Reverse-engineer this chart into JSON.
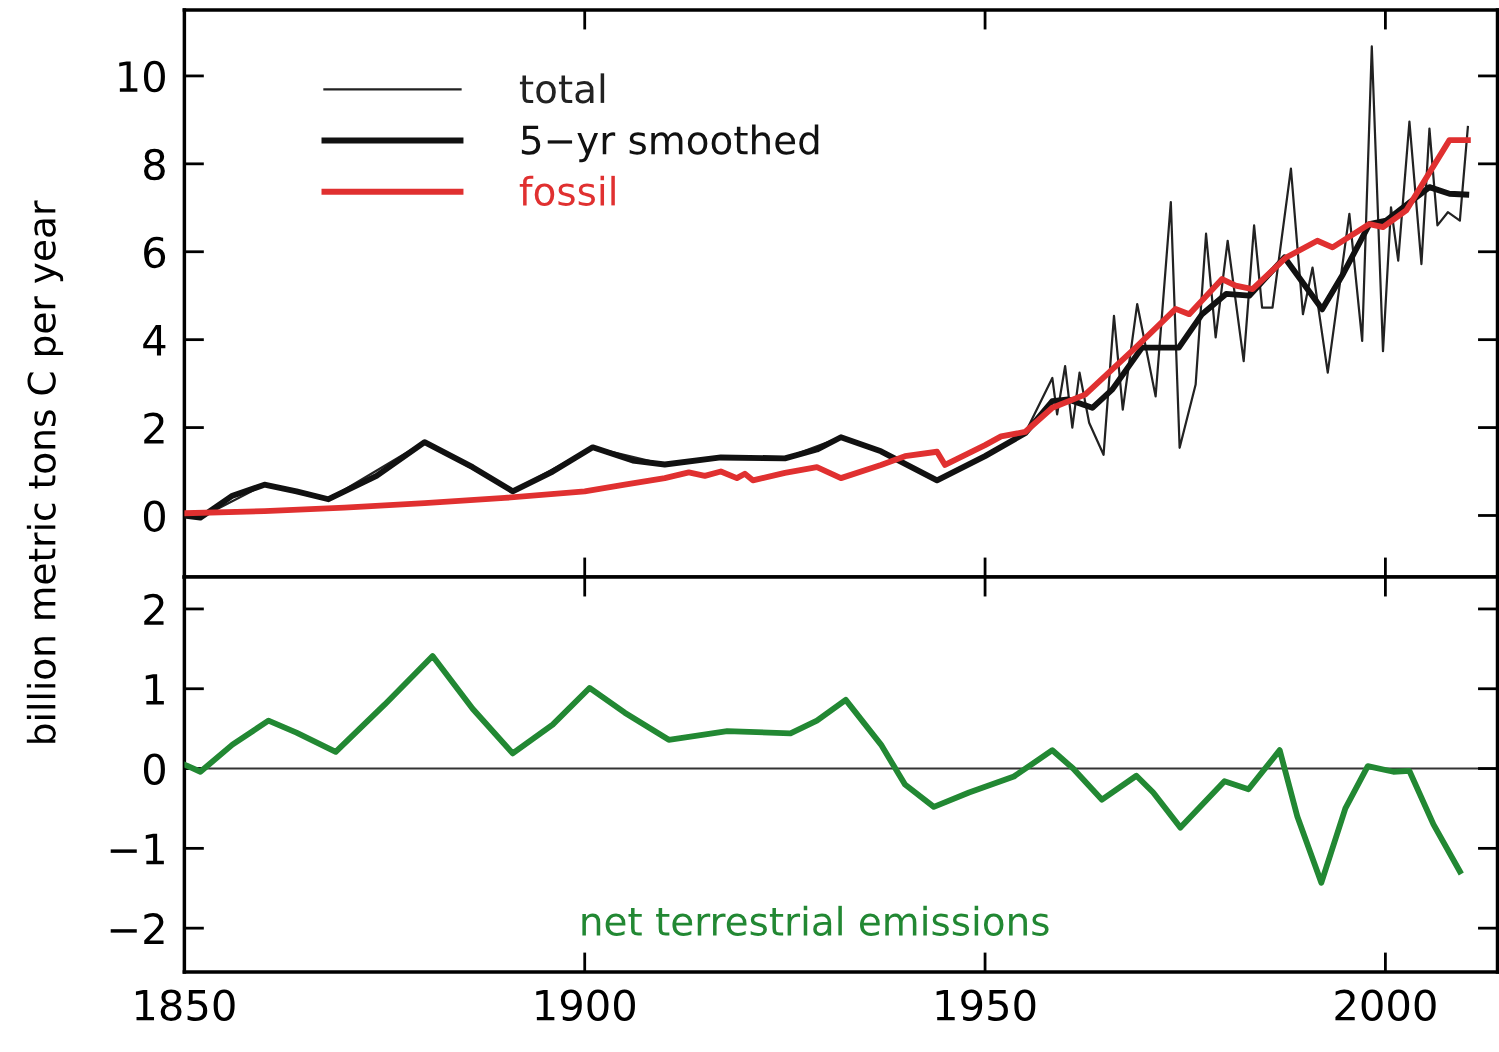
{
  "chart_data": [
    {
      "type": "line",
      "ylabel": "billion metric tons C per year",
      "legend": "top left",
      "tick_labels": "y",
      "xlim": [
        1850,
        2014
      ],
      "ylim": [
        -1.4,
        11.5
      ],
      "xticks": [
        {
          "value": 1850,
          "label": null
        },
        {
          "value": 1900,
          "label": null
        },
        {
          "value": 1950,
          "label": null
        },
        {
          "value": 2000,
          "label": null
        }
      ],
      "yticks": [
        0,
        2,
        4,
        6,
        8,
        10
      ],
      "series": [
        {
          "name": "total",
          "color": "#222222",
          "x": [
            1850,
            1852,
            1860,
            1868,
            1880,
            1891,
            1901,
            1910,
            1917,
            1925,
            1932,
            1937,
            1944,
            1950,
            1955,
            1958.4,
            1959,
            1960,
            1960.9,
            1961.8,
            1963,
            1964.8,
            1966.1,
            1967.2,
            1969,
            1971.3,
            1973.2,
            1974.3,
            1976.3,
            1977.6,
            1978.8,
            1980.3,
            1982.3,
            1983.6,
            1984.6,
            1985.9,
            1988.2,
            1989.7,
            1990.9,
            1992.8,
            1995.5,
            1997.1,
            1998.3,
            1999.7,
            2000.7,
            2001.6,
            2003,
            2004.5,
            2005.5,
            2006.5,
            2007.8,
            2009.3,
            2010.3
          ],
          "values": [
            0.0,
            -0.05,
            0.7,
            0.37,
            1.67,
            0.55,
            1.55,
            1.16,
            1.32,
            1.3,
            1.78,
            1.46,
            0.8,
            1.35,
            1.87,
            3.13,
            2.3,
            3.4,
            2.0,
            3.25,
            2.11,
            1.38,
            4.54,
            2.41,
            4.81,
            2.71,
            7.13,
            1.54,
            2.98,
            6.41,
            4.05,
            6.25,
            3.51,
            6.6,
            4.73,
            4.73,
            7.89,
            4.58,
            5.64,
            3.25,
            6.86,
            3.97,
            10.67,
            3.74,
            7.01,
            5.8,
            8.96,
            5.72,
            8.8,
            6.6,
            6.9,
            6.71,
            8.84
          ]
        },
        {
          "name": "5−yr smoothed",
          "color": "#111111",
          "x": [
            1850,
            1852,
            1856,
            1860,
            1864,
            1868,
            1874,
            1880,
            1886,
            1891,
            1896,
            1901,
            1906,
            1910,
            1917,
            1925,
            1929,
            1932,
            1937,
            1944,
            1950,
            1955,
            1958.4,
            1960.4,
            1963.4,
            1965.9,
            1969.6,
            1974.2,
            1977.1,
            1980.1,
            1983,
            1987.4,
            1992.1,
            1994.7,
            1998,
            2000.1,
            2002.8,
            2005.5,
            2008,
            2010.1
          ],
          "values": [
            0.0,
            -0.05,
            0.45,
            0.7,
            0.55,
            0.37,
            0.9,
            1.67,
            1.1,
            0.55,
            1.0,
            1.55,
            1.25,
            1.16,
            1.32,
            1.3,
            1.5,
            1.78,
            1.46,
            0.8,
            1.35,
            1.87,
            2.6,
            2.64,
            2.45,
            2.87,
            3.82,
            3.82,
            4.58,
            5.04,
            5.0,
            5.87,
            4.69,
            5.49,
            6.63,
            6.71,
            7.09,
            7.47,
            7.32,
            7.3
          ]
        },
        {
          "name": "fossil",
          "color": "#e03030",
          "x": [
            1850,
            1860,
            1870,
            1880,
            1890,
            1900,
            1905,
            1910,
            1913,
            1915,
            1917,
            1919,
            1920,
            1921,
            1925,
            1929,
            1932,
            1937,
            1940,
            1944,
            1945,
            1950,
            1952,
            1955,
            1958.4,
            1962.5,
            1968.8,
            1973.8,
            1975.5,
            1979.6,
            1981.3,
            1983.4,
            1987.6,
            1991.5,
            1993.4,
            1998,
            1999.7,
            2002.6,
            2008,
            2010.3
          ],
          "values": [
            0.05,
            0.1,
            0.18,
            0.28,
            0.4,
            0.55,
            0.7,
            0.85,
            0.98,
            0.9,
            1.0,
            0.85,
            0.95,
            0.8,
            0.97,
            1.1,
            0.85,
            1.15,
            1.35,
            1.45,
            1.15,
            1.6,
            1.8,
            1.9,
            2.45,
            2.75,
            3.82,
            4.7,
            4.58,
            5.38,
            5.23,
            5.15,
            5.87,
            6.25,
            6.1,
            6.63,
            6.56,
            6.94,
            8.54,
            8.54
          ]
        }
      ]
    },
    {
      "type": "line",
      "xlim": [
        1850,
        2014
      ],
      "ylim": [
        -2.55,
        2.4
      ],
      "xticks": [
        1850,
        1900,
        1950,
        2000
      ],
      "yticks": [
        -2,
        -1,
        0,
        1,
        2
      ],
      "ref_lines": [
        {
          "axis": "y",
          "value": 0,
          "color": "#333333"
        }
      ],
      "series": [
        {
          "name": "net terrestrial emissions",
          "color": "#228833",
          "x": [
            1850,
            1852,
            1856,
            1860.5,
            1864,
            1868.9,
            1875,
            1881,
            1886,
            1891,
            1896,
            1900.6,
            1905,
            1910.5,
            1917.8,
            1925.7,
            1929,
            1932.6,
            1937,
            1940,
            1943.6,
            1948,
            1953.6,
            1958.4,
            1961,
            1964.6,
            1968.9,
            1971,
            1974.4,
            1979.9,
            1982.9,
            1986.8,
            1989,
            1992,
            1995,
            1997.8,
            2001,
            2003,
            2006,
            2009.3
          ],
          "values": [
            0.05,
            -0.04,
            0.3,
            0.6,
            0.45,
            0.21,
            0.8,
            1.41,
            0.75,
            0.19,
            0.55,
            1.01,
            0.7,
            0.36,
            0.47,
            0.44,
            0.6,
            0.86,
            0.3,
            -0.2,
            -0.48,
            -0.3,
            -0.1,
            0.23,
            0.0,
            -0.39,
            -0.09,
            -0.3,
            -0.74,
            -0.16,
            -0.26,
            0.23,
            -0.6,
            -1.43,
            -0.5,
            0.03,
            -0.04,
            -0.03,
            -0.7,
            -1.29
          ]
        }
      ]
    }
  ]
}
